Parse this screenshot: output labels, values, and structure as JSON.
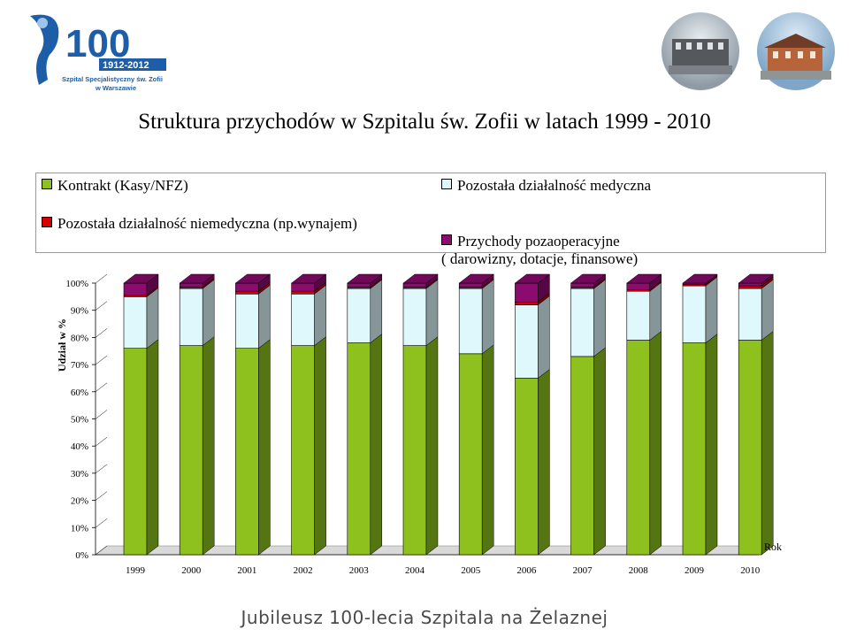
{
  "logo": {
    "number": "100",
    "years": "1912-2012",
    "org_line1": "Szpital Specjalistyczny św. Zofii",
    "org_line2": "w Warszawie"
  },
  "title": "Struktura przychodów w Szpitalu św. Zofii w latach 1999 - 2010",
  "footer": "Jubileusz 100-lecia Szpitala na Żelaznej",
  "colors": {
    "kontrakt": "#8ec11e",
    "medyczna": "#dff8fc",
    "niemedyczna": "#d60000",
    "pozaoperacyjne": "#8c0b6e",
    "accent_blue": "#1e5ea8"
  },
  "chart_data": {
    "type": "bar",
    "stacked": true,
    "percent": true,
    "categories": [
      "1999",
      "2000",
      "2001",
      "2002",
      "2003",
      "2004",
      "2005",
      "2006",
      "2007",
      "2008",
      "2009",
      "2010"
    ],
    "series": [
      {
        "name": "Kontrakt (Kasy/NFZ)",
        "values": [
          76,
          77,
          76,
          77,
          78,
          77,
          74,
          65,
          73,
          79,
          78,
          79
        ]
      },
      {
        "name": "Pozostała działalność medyczna",
        "values": [
          19,
          21,
          20,
          19,
          20,
          21,
          24,
          27,
          25,
          18,
          21,
          19
        ]
      },
      {
        "name": "Pozostała działalność niemedyczna (np.wynajem)",
        "values": [
          0.5,
          0.5,
          1,
          1,
          0.5,
          0.5,
          0.5,
          1,
          0.5,
          0.5,
          0.5,
          1
        ]
      },
      {
        "name": "Przychody pozaoperacyjne\n( darowizny, dotacje, finansowe)",
        "values": [
          4.5,
          1.5,
          3,
          3,
          1.5,
          1.5,
          1.5,
          7,
          1.5,
          2.5,
          0.5,
          1
        ]
      }
    ],
    "ylabel": "Udział w %",
    "xlabel": "Rok",
    "ylim": [
      0,
      100
    ],
    "yticks": [
      "0%",
      "10%",
      "20%",
      "30%",
      "40%",
      "50%",
      "60%",
      "70%",
      "80%",
      "90%",
      "100%"
    ],
    "legend_position": "top",
    "grid": false
  }
}
